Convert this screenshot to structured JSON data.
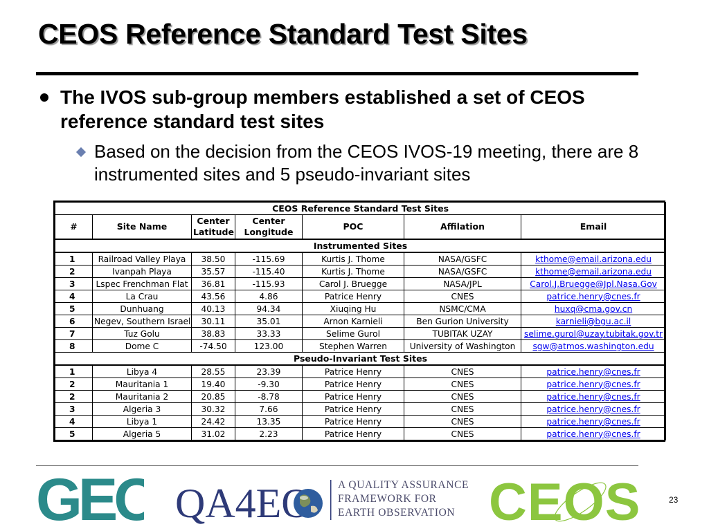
{
  "slide": {
    "title": "CEOS Reference Standard Test Sites",
    "bullet1": "The IVOS sub-group members established a set of CEOS reference standard test sites",
    "bullet2": "Based on the decision from the CEOS IVOS-19 meeting, there are 8 instrumented sites and 5 pseudo-invariant sites",
    "page_number": "23"
  },
  "table": {
    "caption": "CEOS Reference Standard Test Sites",
    "headers": {
      "num": "#",
      "site": "Site Name",
      "lat_line1": "Center",
      "lat_line2": "Latitude",
      "lon_line1": "Center",
      "lon_line2": "Longitude",
      "poc": "POC",
      "affil": "Affilation",
      "email": "Email"
    },
    "sections": [
      {
        "title": "Instrumented Sites",
        "rows": [
          {
            "num": "1",
            "site": "Railroad Valley Playa",
            "lat": "38.50",
            "lon": "-115.69",
            "poc": "Kurtis J. Thome",
            "affil": "NASA/GSFC",
            "email": "kthome@email.arizona.edu"
          },
          {
            "num": "2",
            "site": "Ivanpah Playa",
            "lat": "35.57",
            "lon": "-115.40",
            "poc": "Kurtis J. Thome",
            "affil": "NASA/GSFC",
            "email": "kthome@email.arizona.edu"
          },
          {
            "num": "3",
            "site": "Lspec Frenchman Flat",
            "lat": "36.81",
            "lon": "-115.93",
            "poc": "Carol J. Bruegge",
            "affil": "NASA/JPL",
            "email": "Carol.J.Bruegge@Jpl.Nasa.Gov"
          },
          {
            "num": "4",
            "site": "La Crau",
            "lat": "43.56",
            "lon": "4.86",
            "poc": "Patrice Henry",
            "affil": "CNES",
            "email": "patrice.henry@cnes.fr"
          },
          {
            "num": "5",
            "site": "Dunhuang",
            "lat": "40.13",
            "lon": "94.34",
            "poc": "Xiuqing Hu",
            "affil": "NSMC/CMA",
            "email": "huxq@cma.gov.cn"
          },
          {
            "num": "6",
            "site": "Negev, Southern Israel",
            "lat": "30.11",
            "lon": "35.01",
            "poc": "Arnon Karnieli",
            "affil": "Ben Gurion University",
            "email": "karnieli@bgu.ac.il"
          },
          {
            "num": "7",
            "site": "Tuz Golu",
            "lat": "38.83",
            "lon": "33.33",
            "poc": "Selime Gurol",
            "affil": "TUBITAK UZAY",
            "email": "selime.gurol@uzay.tubitak.gov.tr"
          },
          {
            "num": "8",
            "site": "Dome C",
            "lat": "-74.50",
            "lon": "123.00",
            "poc": "Stephen Warren",
            "affil": "University of Washington",
            "email": "sgw@atmos.washington.edu"
          }
        ]
      },
      {
        "title": "Pseudo-Invariant Test Sites",
        "rows": [
          {
            "num": "1",
            "site": "Libya 4",
            "lat": "28.55",
            "lon": "23.39",
            "poc": "Patrice Henry",
            "affil": "CNES",
            "email": "patrice.henry@cnes.fr"
          },
          {
            "num": "2",
            "site": "Mauritania 1",
            "lat": "19.40",
            "lon": "-9.30",
            "poc": "Patrice Henry",
            "affil": "CNES",
            "email": "patrice.henry@cnes.fr"
          },
          {
            "num": "2",
            "site": "Mauritania 2",
            "lat": "20.85",
            "lon": "-8.78",
            "poc": "Patrice Henry",
            "affil": "CNES",
            "email": "patrice.henry@cnes.fr"
          },
          {
            "num": "3",
            "site": "Algeria 3",
            "lat": "30.32",
            "lon": "7.66",
            "poc": "Patrice Henry",
            "affil": "CNES",
            "email": "patrice.henry@cnes.fr"
          },
          {
            "num": "4",
            "site": "Libya 1",
            "lat": "24.42",
            "lon": "13.35",
            "poc": "Patrice Henry",
            "affil": "CNES",
            "email": "patrice.henry@cnes.fr"
          },
          {
            "num": "5",
            "site": "Algeria 5",
            "lat": "31.02",
            "lon": "2.23",
            "poc": "Patrice Henry",
            "affil": "CNES",
            "email": "patrice.henry@cnes.fr"
          }
        ]
      }
    ]
  },
  "footer": {
    "geo_logo_text": "GEO",
    "qa4eo_logo_text": "QA4EO",
    "qa4eo_tagline": [
      "A QUALITY ASSURANCE",
      "FRAMEWORK FOR",
      "EARTH OBSERVATION"
    ],
    "ceos_logo_text": "CEOS"
  },
  "colors": {
    "geo_teal": "#2b8a8a",
    "qa4eo_navy": "#2e3a78",
    "ceos_green": "#8cc63f",
    "link_blue": "#0000ee",
    "bullet_diamond": "#6a7fb0"
  },
  "icons": {
    "bullet1": "filled-circle",
    "bullet2": "diamond",
    "earth": "globe-icon"
  }
}
